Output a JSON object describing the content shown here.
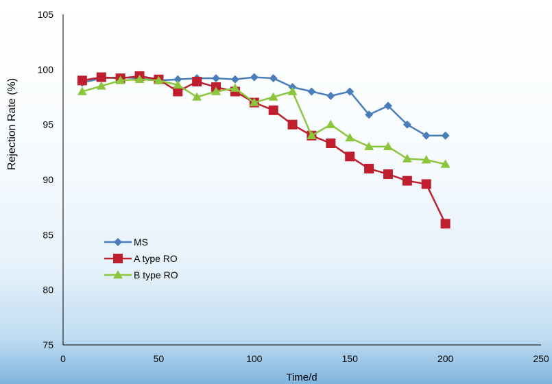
{
  "chart_data": {
    "type": "line",
    "title": "",
    "xlabel": "Time/d",
    "ylabel": "Rejection Rate (%)",
    "xlim": [
      0,
      250
    ],
    "ylim": [
      75,
      105
    ],
    "x_ticks": [
      0,
      50,
      100,
      150,
      200,
      250
    ],
    "y_ticks": [
      75,
      80,
      85,
      90,
      95,
      100,
      105
    ],
    "grid": false,
    "legend_position": "lower-left",
    "series": [
      {
        "name": "MS",
        "color": "#4a7ebb",
        "marker": "diamond",
        "x": [
          10,
          20,
          30,
          40,
          50,
          60,
          70,
          80,
          90,
          100,
          110,
          120,
          130,
          140,
          150,
          160,
          170,
          180,
          190,
          200
        ],
        "y": [
          98.8,
          99.2,
          99.3,
          99.2,
          99.0,
          99.1,
          99.2,
          99.2,
          99.1,
          99.3,
          99.2,
          98.4,
          98.0,
          97.6,
          98.0,
          95.9,
          96.7,
          95.0,
          94.0,
          94.0
        ]
      },
      {
        "name": "A type RO",
        "color": "#be1e2d",
        "marker": "square",
        "x": [
          10,
          20,
          30,
          40,
          50,
          60,
          70,
          80,
          90,
          100,
          110,
          120,
          130,
          140,
          150,
          160,
          170,
          180,
          190,
          200
        ],
        "y": [
          99.0,
          99.3,
          99.2,
          99.4,
          99.1,
          98.0,
          98.9,
          98.4,
          98.0,
          97.0,
          96.3,
          95.0,
          94.0,
          93.3,
          92.1,
          91.0,
          90.5,
          89.9,
          89.6,
          86.0
        ]
      },
      {
        "name": "B type RO",
        "color": "#8cc63f",
        "marker": "triangle",
        "x": [
          10,
          20,
          30,
          40,
          50,
          60,
          70,
          80,
          90,
          100,
          110,
          120,
          130,
          140,
          150,
          160,
          170,
          180,
          190,
          200
        ],
        "y": [
          98.0,
          98.5,
          99.0,
          99.1,
          99.0,
          98.6,
          97.5,
          98.0,
          98.3,
          97.0,
          97.5,
          98.0,
          94.0,
          95.0,
          93.8,
          93.0,
          93.0,
          91.9,
          91.8,
          91.4
        ]
      }
    ]
  }
}
